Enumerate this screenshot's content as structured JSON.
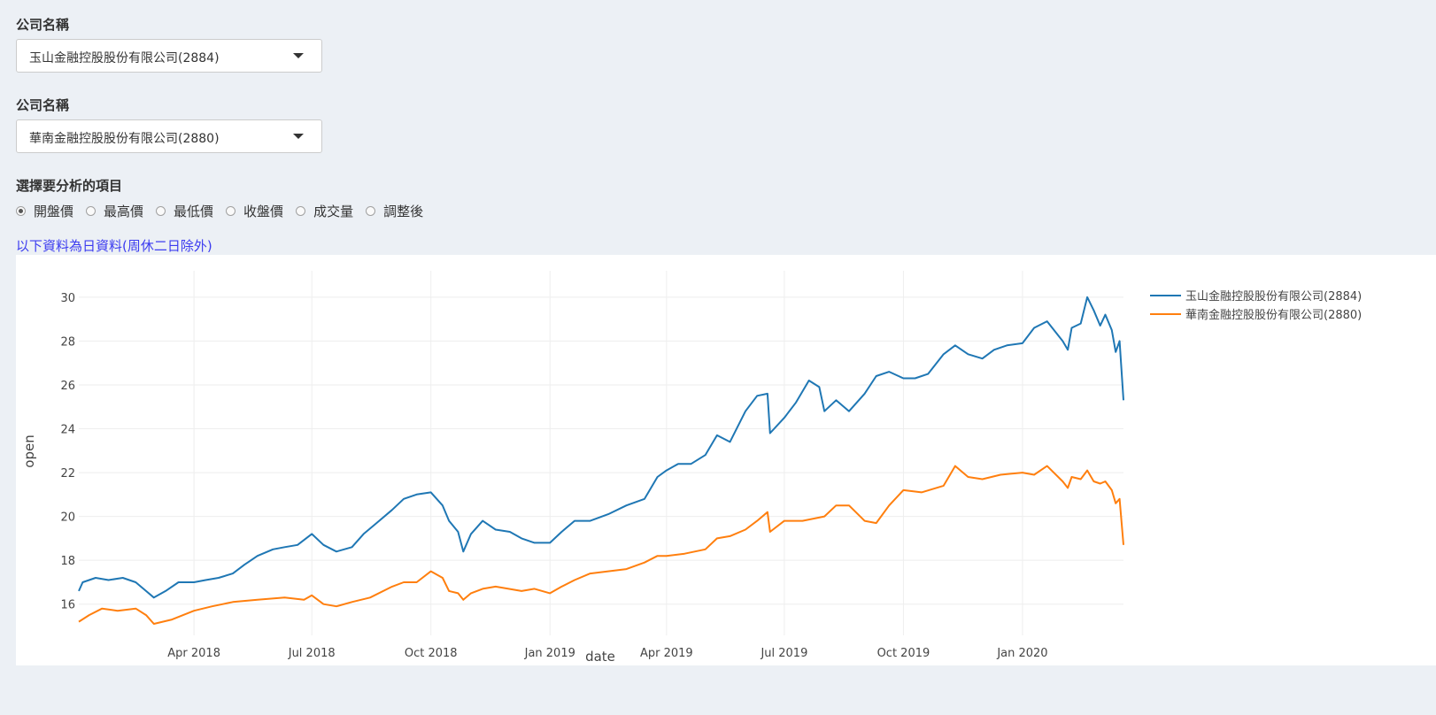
{
  "select1": {
    "label": "公司名稱",
    "value": "玉山金融控股股份有限公司(2884)"
  },
  "select2": {
    "label": "公司名稱",
    "value": "華南金融控股股份有限公司(2880)"
  },
  "analysis": {
    "label": "選擇要分析的項目",
    "options": [
      "開盤價",
      "最高價",
      "最低價",
      "收盤價",
      "成交量",
      "調整後"
    ],
    "selected": "開盤價"
  },
  "note": "以下資料為日資料(周休二日除外)",
  "chart_data": {
    "type": "line",
    "title": "",
    "xlabel": "date",
    "ylabel": "open",
    "ylim": [
      14.9,
      30.8
    ],
    "yticks": [
      16,
      18,
      20,
      22,
      24,
      26,
      28,
      30
    ],
    "xlim": [
      "2018-01-02",
      "2020-03-19"
    ],
    "xticks": [
      {
        "date": "2018-04-01",
        "label": "Apr 2018"
      },
      {
        "date": "2018-07-01",
        "label": "Jul 2018"
      },
      {
        "date": "2018-10-01",
        "label": "Oct 2018"
      },
      {
        "date": "2019-01-01",
        "label": "Jan 2019"
      },
      {
        "date": "2019-04-01",
        "label": "Apr 2019"
      },
      {
        "date": "2019-07-01",
        "label": "Jul 2019"
      },
      {
        "date": "2019-10-01",
        "label": "Oct 2019"
      },
      {
        "date": "2020-01-01",
        "label": "Jan 2020"
      }
    ],
    "series": [
      {
        "name": "玉山金融控股股份有限公司(2884)",
        "color": "#1f77b4",
        "points": [
          [
            "2018-01-02",
            16.6
          ],
          [
            "2018-01-05",
            17.0
          ],
          [
            "2018-01-15",
            17.2
          ],
          [
            "2018-01-25",
            17.1
          ],
          [
            "2018-02-05",
            17.2
          ],
          [
            "2018-02-15",
            17.0
          ],
          [
            "2018-02-23",
            16.6
          ],
          [
            "2018-03-01",
            16.3
          ],
          [
            "2018-03-10",
            16.6
          ],
          [
            "2018-03-20",
            17.0
          ],
          [
            "2018-04-01",
            17.0
          ],
          [
            "2018-04-10",
            17.1
          ],
          [
            "2018-04-20",
            17.2
          ],
          [
            "2018-05-01",
            17.4
          ],
          [
            "2018-05-10",
            17.8
          ],
          [
            "2018-05-20",
            18.2
          ],
          [
            "2018-06-01",
            18.5
          ],
          [
            "2018-06-10",
            18.6
          ],
          [
            "2018-06-20",
            18.7
          ],
          [
            "2018-07-01",
            19.2
          ],
          [
            "2018-07-10",
            18.7
          ],
          [
            "2018-07-20",
            18.4
          ],
          [
            "2018-08-01",
            18.6
          ],
          [
            "2018-08-10",
            19.2
          ],
          [
            "2018-08-20",
            19.7
          ],
          [
            "2018-09-01",
            20.3
          ],
          [
            "2018-09-10",
            20.8
          ],
          [
            "2018-09-20",
            21.0
          ],
          [
            "2018-10-01",
            21.1
          ],
          [
            "2018-10-10",
            20.5
          ],
          [
            "2018-10-15",
            19.8
          ],
          [
            "2018-10-22",
            19.3
          ],
          [
            "2018-10-26",
            18.4
          ],
          [
            "2018-11-01",
            19.2
          ],
          [
            "2018-11-10",
            19.8
          ],
          [
            "2018-11-20",
            19.4
          ],
          [
            "2018-12-01",
            19.3
          ],
          [
            "2018-12-10",
            19.0
          ],
          [
            "2018-12-20",
            18.8
          ],
          [
            "2019-01-01",
            18.8
          ],
          [
            "2019-01-10",
            19.3
          ],
          [
            "2019-01-20",
            19.8
          ],
          [
            "2019-02-01",
            19.8
          ],
          [
            "2019-02-15",
            20.1
          ],
          [
            "2019-03-01",
            20.5
          ],
          [
            "2019-03-15",
            20.8
          ],
          [
            "2019-03-25",
            21.8
          ],
          [
            "2019-04-01",
            22.1
          ],
          [
            "2019-04-10",
            22.4
          ],
          [
            "2019-04-20",
            22.4
          ],
          [
            "2019-05-01",
            22.8
          ],
          [
            "2019-05-10",
            23.7
          ],
          [
            "2019-05-20",
            23.4
          ],
          [
            "2019-06-01",
            24.8
          ],
          [
            "2019-06-10",
            25.5
          ],
          [
            "2019-06-18",
            25.6
          ],
          [
            "2019-06-20",
            23.8
          ],
          [
            "2019-07-01",
            24.5
          ],
          [
            "2019-07-10",
            25.2
          ],
          [
            "2019-07-20",
            26.2
          ],
          [
            "2019-07-28",
            25.9
          ],
          [
            "2019-08-01",
            24.8
          ],
          [
            "2019-08-10",
            25.3
          ],
          [
            "2019-08-20",
            24.8
          ],
          [
            "2019-09-01",
            25.6
          ],
          [
            "2019-09-10",
            26.4
          ],
          [
            "2019-09-20",
            26.6
          ],
          [
            "2019-10-01",
            26.3
          ],
          [
            "2019-10-10",
            26.3
          ],
          [
            "2019-10-20",
            26.5
          ],
          [
            "2019-11-01",
            27.4
          ],
          [
            "2019-11-10",
            27.8
          ],
          [
            "2019-11-20",
            27.4
          ],
          [
            "2019-12-01",
            27.2
          ],
          [
            "2019-12-10",
            27.6
          ],
          [
            "2019-12-20",
            27.8
          ],
          [
            "2020-01-01",
            27.9
          ],
          [
            "2020-01-10",
            28.6
          ],
          [
            "2020-01-20",
            28.9
          ],
          [
            "2020-02-01",
            28.0
          ],
          [
            "2020-02-05",
            27.6
          ],
          [
            "2020-02-08",
            28.6
          ],
          [
            "2020-02-15",
            28.8
          ],
          [
            "2020-02-20",
            30.0
          ],
          [
            "2020-02-25",
            29.4
          ],
          [
            "2020-03-01",
            28.7
          ],
          [
            "2020-03-05",
            29.2
          ],
          [
            "2020-03-10",
            28.5
          ],
          [
            "2020-03-13",
            27.5
          ],
          [
            "2020-03-16",
            28.0
          ],
          [
            "2020-03-19",
            25.3
          ]
        ]
      },
      {
        "name": "華南金融控股股份有限公司(2880)",
        "color": "#ff7f0e",
        "points": [
          [
            "2018-01-02",
            15.2
          ],
          [
            "2018-01-10",
            15.5
          ],
          [
            "2018-01-20",
            15.8
          ],
          [
            "2018-02-01",
            15.7
          ],
          [
            "2018-02-15",
            15.8
          ],
          [
            "2018-02-23",
            15.5
          ],
          [
            "2018-03-01",
            15.1
          ],
          [
            "2018-03-15",
            15.3
          ],
          [
            "2018-04-01",
            15.7
          ],
          [
            "2018-04-15",
            15.9
          ],
          [
            "2018-05-01",
            16.1
          ],
          [
            "2018-05-20",
            16.2
          ],
          [
            "2018-06-10",
            16.3
          ],
          [
            "2018-06-25",
            16.2
          ],
          [
            "2018-07-01",
            16.4
          ],
          [
            "2018-07-10",
            16.0
          ],
          [
            "2018-07-20",
            15.9
          ],
          [
            "2018-08-01",
            16.1
          ],
          [
            "2018-08-15",
            16.3
          ],
          [
            "2018-09-01",
            16.8
          ],
          [
            "2018-09-10",
            17.0
          ],
          [
            "2018-09-20",
            17.0
          ],
          [
            "2018-10-01",
            17.5
          ],
          [
            "2018-10-10",
            17.2
          ],
          [
            "2018-10-15",
            16.6
          ],
          [
            "2018-10-22",
            16.5
          ],
          [
            "2018-10-26",
            16.2
          ],
          [
            "2018-11-01",
            16.5
          ],
          [
            "2018-11-10",
            16.7
          ],
          [
            "2018-11-20",
            16.8
          ],
          [
            "2018-12-10",
            16.6
          ],
          [
            "2018-12-20",
            16.7
          ],
          [
            "2019-01-01",
            16.5
          ],
          [
            "2019-01-10",
            16.8
          ],
          [
            "2019-01-20",
            17.1
          ],
          [
            "2019-02-01",
            17.4
          ],
          [
            "2019-02-15",
            17.5
          ],
          [
            "2019-03-01",
            17.6
          ],
          [
            "2019-03-15",
            17.9
          ],
          [
            "2019-03-25",
            18.2
          ],
          [
            "2019-04-01",
            18.2
          ],
          [
            "2019-04-15",
            18.3
          ],
          [
            "2019-05-01",
            18.5
          ],
          [
            "2019-05-10",
            19.0
          ],
          [
            "2019-05-20",
            19.1
          ],
          [
            "2019-06-01",
            19.4
          ],
          [
            "2019-06-10",
            19.8
          ],
          [
            "2019-06-18",
            20.2
          ],
          [
            "2019-06-20",
            19.3
          ],
          [
            "2019-07-01",
            19.8
          ],
          [
            "2019-07-15",
            19.8
          ],
          [
            "2019-08-01",
            20.0
          ],
          [
            "2019-08-10",
            20.5
          ],
          [
            "2019-08-20",
            20.5
          ],
          [
            "2019-09-01",
            19.8
          ],
          [
            "2019-09-10",
            19.7
          ],
          [
            "2019-09-20",
            20.5
          ],
          [
            "2019-10-01",
            21.2
          ],
          [
            "2019-10-15",
            21.1
          ],
          [
            "2019-11-01",
            21.4
          ],
          [
            "2019-11-10",
            22.3
          ],
          [
            "2019-11-20",
            21.8
          ],
          [
            "2019-12-01",
            21.7
          ],
          [
            "2019-12-15",
            21.9
          ],
          [
            "2020-01-01",
            22.0
          ],
          [
            "2020-01-10",
            21.9
          ],
          [
            "2020-01-20",
            22.3
          ],
          [
            "2020-02-01",
            21.6
          ],
          [
            "2020-02-05",
            21.3
          ],
          [
            "2020-02-08",
            21.8
          ],
          [
            "2020-02-15",
            21.7
          ],
          [
            "2020-02-20",
            22.1
          ],
          [
            "2020-02-25",
            21.6
          ],
          [
            "2020-03-01",
            21.5
          ],
          [
            "2020-03-05",
            21.6
          ],
          [
            "2020-03-10",
            21.2
          ],
          [
            "2020-03-13",
            20.6
          ],
          [
            "2020-03-16",
            20.8
          ],
          [
            "2020-03-19",
            18.7
          ]
        ]
      }
    ]
  }
}
